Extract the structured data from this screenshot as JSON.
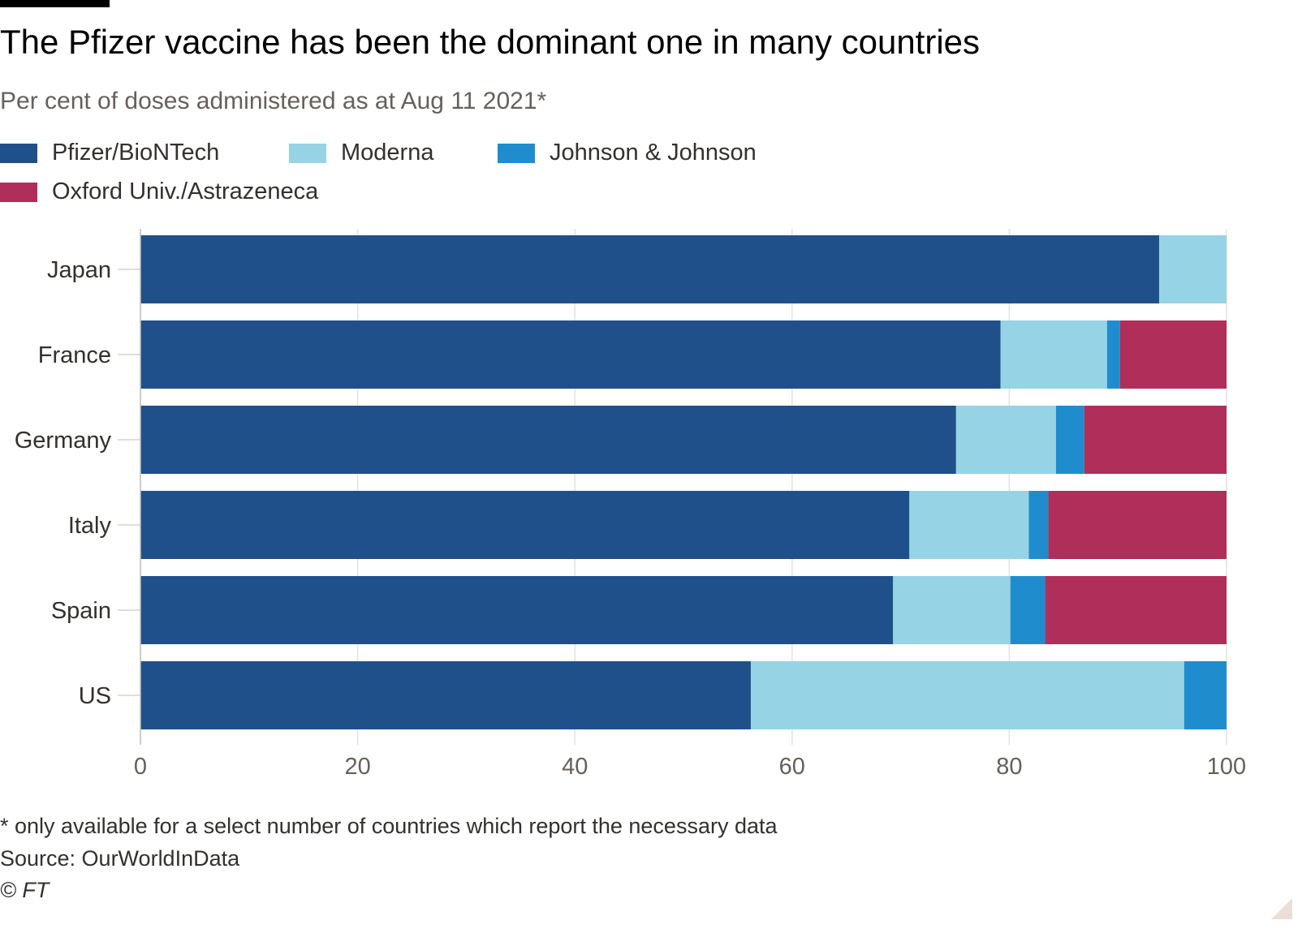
{
  "title": "The Pfizer vaccine has been the dominant one in many countries",
  "subtitle": "Per cent of doses administered as at Aug 11 2021*",
  "footnote": "* only available for a select number of countries which report the necessary data",
  "source": "Source: OurWorldInData",
  "copyright": "© FT",
  "colors": {
    "pfizer": "#205089",
    "moderna": "#96d3e5",
    "jj": "#1f8dcd",
    "astrazeneca": "#b02e5a"
  },
  "chart_data": {
    "type": "bar",
    "orientation": "horizontal",
    "stacked": true,
    "categories": [
      "Japan",
      "France",
      "Germany",
      "Italy",
      "Spain",
      "US"
    ],
    "series": [
      {
        "name": "Pfizer/BioNTech",
        "color": "#205089",
        "values": [
          93.8,
          79.2,
          75.1,
          70.8,
          69.3,
          56.2
        ]
      },
      {
        "name": "Moderna",
        "color": "#96d3e5",
        "values": [
          6.2,
          9.8,
          9.2,
          11.0,
          10.8,
          39.9
        ]
      },
      {
        "name": "Johnson & Johnson",
        "color": "#1f8dcd",
        "values": [
          0,
          1.2,
          2.6,
          1.8,
          3.2,
          3.9
        ]
      },
      {
        "name": "Oxford Univ./Astrazeneca",
        "color": "#b02e5a",
        "values": [
          0,
          9.8,
          13.1,
          16.4,
          16.7,
          0
        ]
      }
    ],
    "xlim": [
      0,
      100
    ],
    "xticks": [
      "0",
      "20",
      "40",
      "60",
      "80",
      "100"
    ],
    "grid": "vertical",
    "legend_position": "top"
  }
}
